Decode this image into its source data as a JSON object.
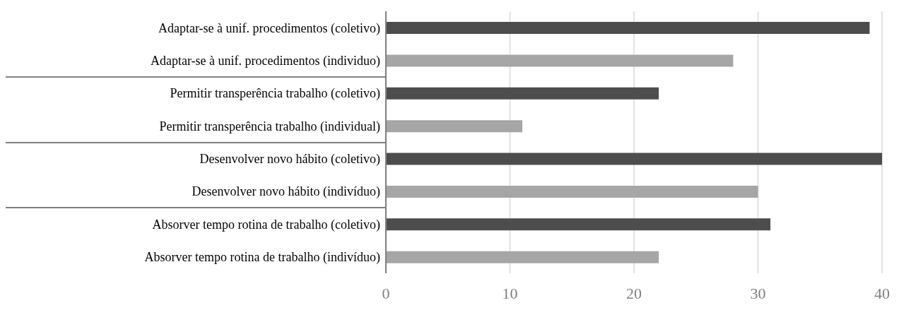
{
  "chart_data": {
    "type": "bar",
    "orientation": "horizontal",
    "categories": [
      "Adaptar-se à unif. procedimentos (coletivo)",
      "Adaptar-se à unif. procedimentos (individuo)",
      "Permitir transperência trabalho (coletivo)",
      "Permitir transperência trabalho (individual)",
      "Desenvolver novo hábito (coletivo)",
      "Desenvolver novo hábito (indivíduo)",
      "Absorver tempo rotina de trabalho (coletivo)",
      "Absorver tempo rotina de trabalho (indivíduo)"
    ],
    "values": [
      39,
      28,
      22,
      11,
      40,
      30,
      31,
      22
    ],
    "colors": [
      "#4d4d4d",
      "#a6a6a6",
      "#4d4d4d",
      "#a6a6a6",
      "#4d4d4d",
      "#a6a6a6",
      "#4d4d4d",
      "#a6a6a6"
    ],
    "xlim": [
      0,
      40
    ],
    "xticks": [
      0,
      10,
      20,
      30,
      40
    ],
    "grid": "x",
    "legend": false
  }
}
